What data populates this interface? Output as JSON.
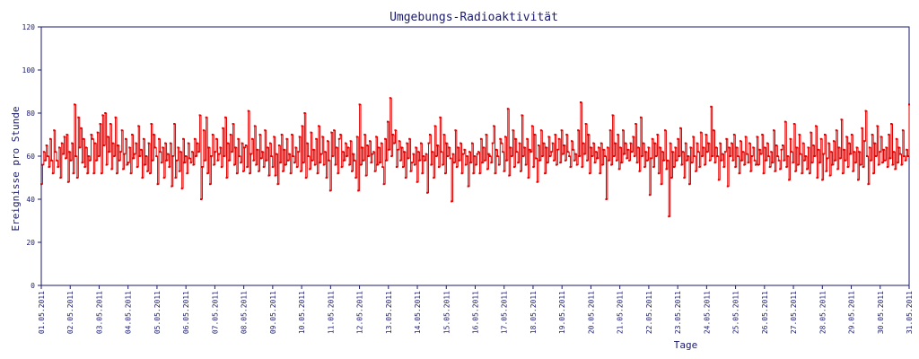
{
  "colors": {
    "axis": "#1a1a6e",
    "series": "#e00000",
    "background": "#ffffff"
  },
  "chart_data": {
    "type": "line",
    "title": "Umgebungs-Radioaktivität",
    "xlabel": "Tage",
    "ylabel": "Ereignisse pro Stunde",
    "ylim": [
      0,
      120
    ],
    "yticks": [
      0,
      20,
      40,
      60,
      80,
      100,
      120
    ],
    "xlim": [
      "01.05.2011",
      "31.05.2011"
    ],
    "xticks": [
      "01.05.2011",
      "02.05.2011",
      "03.05.2011",
      "04.05.2011",
      "05.05.2011",
      "06.05.2011",
      "07.05.2011",
      "08.05.2011",
      "09.05.2011",
      "10.05.2011",
      "11.05.2011",
      "12.05.2011",
      "13.05.2011",
      "14.05.2011",
      "15.05.2011",
      "16.05.2011",
      "17.05.2011",
      "18.05.2011",
      "19.05.2011",
      "20.05.2011",
      "21.05.2011",
      "22.05.2011",
      "23.05.2011",
      "24.05.2011",
      "25.05.2011",
      "26.05.2011",
      "27.05.2011",
      "28.05.2011",
      "29.05.2011",
      "30.05.2011",
      "31.05.2011"
    ],
    "grid": false,
    "legend": "none",
    "series": [
      {
        "values": [
          [
            47,
            56,
            62,
            58,
            65,
            60,
            55,
            68,
            58,
            52,
            72,
            62,
            58,
            55,
            64,
            50,
            66,
            61,
            69,
            59
          ],
          [
            70,
            48,
            62,
            58,
            66,
            52,
            84,
            60,
            50,
            78,
            64,
            73,
            57,
            68,
            55,
            64,
            52,
            60,
            58,
            70
          ],
          [
            68,
            52,
            66,
            58,
            71,
            60,
            75,
            52,
            79,
            65,
            80,
            56,
            69,
            62,
            75,
            54,
            66,
            60,
            78,
            52
          ],
          [
            65,
            58,
            62,
            72,
            54,
            61,
            68,
            56,
            57,
            64,
            52,
            70,
            59,
            61,
            66,
            55,
            74,
            60,
            63,
            50
          ],
          [
            68,
            56,
            60,
            53,
            66,
            52,
            75,
            58,
            70,
            64,
            60,
            47,
            68,
            62,
            57,
            64,
            50,
            66,
            58,
            61
          ],
          [
            55,
            66,
            46,
            60,
            75,
            50,
            58,
            64,
            53,
            62,
            45,
            68,
            57,
            60,
            52,
            66,
            59,
            57,
            62,
            56
          ],
          [
            68,
            60,
            66,
            62,
            79,
            40,
            55,
            72,
            58,
            78,
            52,
            64,
            47,
            60,
            70,
            56,
            62,
            68,
            58,
            61
          ],
          [
            64,
            55,
            73,
            60,
            78,
            50,
            66,
            58,
            70,
            62,
            75,
            56,
            64,
            52,
            68,
            60,
            57,
            66,
            53,
            64
          ],
          [
            65,
            55,
            81,
            52,
            61,
            68,
            58,
            74,
            56,
            63,
            53,
            70,
            59,
            62,
            55,
            72,
            58,
            64,
            51,
            66
          ],
          [
            60,
            55,
            69,
            51,
            61,
            47,
            65,
            57,
            70,
            53,
            63,
            56,
            68,
            58,
            61,
            52,
            70,
            60,
            57,
            64
          ],
          [
            55,
            62,
            69,
            53,
            74,
            57,
            80,
            50,
            66,
            60,
            54,
            71,
            58,
            63,
            56,
            68,
            52,
            74,
            57,
            61
          ],
          [
            69,
            56,
            62,
            50,
            67,
            58,
            44,
            71,
            60,
            72,
            56,
            64,
            52,
            68,
            70,
            55,
            62,
            58,
            66,
            60
          ],
          [
            64,
            56,
            67,
            53,
            61,
            58,
            50,
            69,
            44,
            84,
            56,
            64,
            58,
            70,
            51,
            65,
            60,
            67,
            57,
            61
          ],
          [
            62,
            53,
            69,
            56,
            64,
            57,
            66,
            55,
            47,
            68,
            58,
            76,
            63,
            87,
            60,
            70,
            66,
            72,
            55,
            63
          ],
          [
            67,
            58,
            64,
            55,
            62,
            50,
            66,
            59,
            68,
            53,
            57,
            61,
            56,
            64,
            48,
            62,
            58,
            66,
            52,
            60
          ],
          [
            58,
            61,
            43,
            66,
            70,
            56,
            62,
            50,
            74,
            60,
            65,
            55,
            78,
            62,
            56,
            70,
            52,
            66,
            60,
            64
          ],
          [
            59,
            39,
            61,
            57,
            72,
            55,
            64,
            58,
            66,
            52,
            61,
            63,
            56,
            60,
            46,
            62,
            57,
            66,
            52,
            60
          ],
          [
            56,
            61,
            62,
            52,
            68,
            57,
            64,
            58,
            70,
            54,
            61,
            60,
            57,
            66,
            74,
            52,
            63,
            60,
            56,
            68
          ],
          [
            66,
            62,
            53,
            69,
            58,
            82,
            51,
            64,
            60,
            72,
            55,
            68,
            62,
            57,
            66,
            53,
            79,
            60,
            64,
            56
          ],
          [
            68,
            50,
            63,
            62,
            74,
            55,
            70,
            59,
            48,
            65,
            58,
            72,
            60,
            66,
            52,
            64,
            57,
            69,
            60,
            62
          ],
          [
            66,
            58,
            70,
            56,
            63,
            68,
            57,
            72,
            61,
            65,
            58,
            70,
            62,
            60,
            55,
            67,
            63,
            58,
            61,
            56
          ],
          [
            72,
            60,
            85,
            55,
            66,
            61,
            75,
            58,
            70,
            52,
            64,
            60,
            66,
            57,
            62,
            59,
            64,
            52,
            66,
            56
          ],
          [
            63,
            60,
            40,
            64,
            58,
            72,
            56,
            79,
            60,
            66,
            58,
            70,
            54,
            64,
            57,
            72,
            61,
            66,
            59,
            63
          ],
          [
            58,
            66,
            62,
            69,
            60,
            75,
            57,
            64,
            53,
            78,
            60,
            66,
            55,
            62,
            58,
            64,
            42,
            59,
            68,
            55
          ],
          [
            66,
            60,
            70,
            52,
            64,
            47,
            62,
            58,
            72,
            54,
            58,
            32,
            66,
            50,
            62,
            55,
            64,
            58,
            68,
            60
          ],
          [
            73,
            56,
            62,
            50,
            66,
            58,
            60,
            47,
            64,
            57,
            69,
            60,
            53,
            66,
            62,
            55,
            71,
            60,
            64,
            56
          ],
          [
            70,
            62,
            66,
            58,
            83,
            60,
            72,
            57,
            64,
            60,
            49,
            66,
            58,
            61,
            55,
            62,
            68,
            46,
            64,
            60
          ],
          [
            66,
            58,
            70,
            55,
            64,
            60,
            52,
            67,
            58,
            62,
            56,
            69,
            61,
            57,
            66,
            53,
            60,
            64,
            58,
            56
          ],
          [
            69,
            56,
            63,
            61,
            70,
            52,
            64,
            58,
            66,
            60,
            55,
            62,
            57,
            72,
            53,
            65,
            60,
            58,
            54,
            63
          ],
          [
            65,
            58,
            76,
            55,
            60,
            49,
            68,
            62,
            57,
            75,
            53,
            64,
            56,
            70,
            61,
            52,
            66,
            58,
            60,
            54
          ],
          [
            64,
            52,
            71,
            57,
            65,
            60,
            74,
            50,
            63,
            57,
            68,
            49,
            61,
            70,
            53,
            59,
            66,
            51,
            62,
            56
          ],
          [
            67,
            58,
            72,
            54,
            64,
            59,
            77,
            52,
            63,
            58,
            69,
            55,
            66,
            61,
            70,
            53,
            62,
            57,
            64,
            49
          ],
          [
            62,
            56,
            73,
            55,
            67,
            81,
            60,
            47,
            64,
            58,
            70,
            52,
            66,
            60,
            74,
            56,
            62,
            69,
            57,
            63
          ],
          [
            58,
            64,
            55,
            70,
            59,
            75,
            56,
            62,
            54,
            68,
            57,
            64,
            61,
            56,
            72,
            60,
            58,
            63,
            60,
            84
          ]
        ]
      }
    ]
  }
}
